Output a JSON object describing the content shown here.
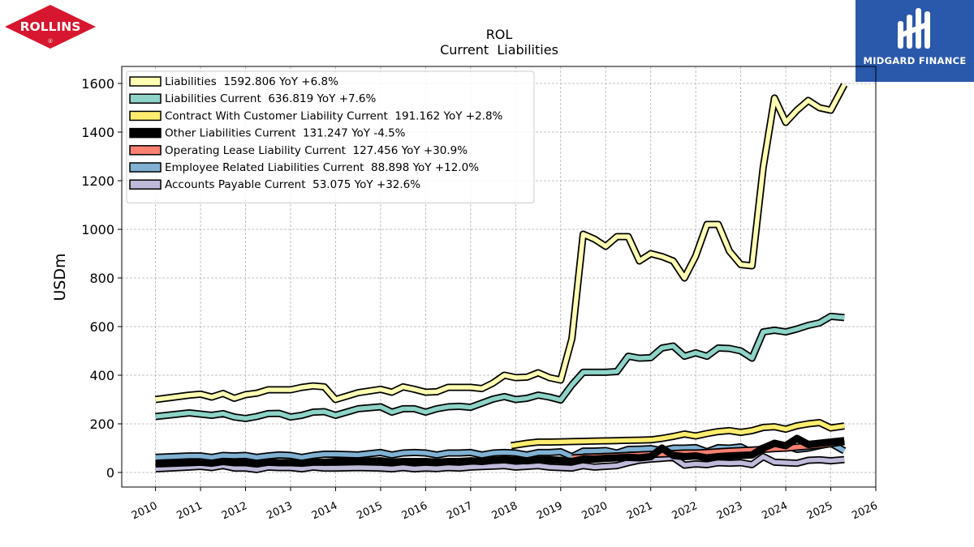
{
  "logos": {
    "left": {
      "text": "ROLLINS",
      "mark": "®",
      "color": "#d7172f"
    },
    "right": {
      "text": "MIDGARD FINANCE",
      "color": "#2a58ab"
    }
  },
  "chart_data": {
    "type": "line",
    "title": "ROL",
    "subtitle": "Current  Liabilities",
    "ylabel": "USDm",
    "xlim": [
      2009.25,
      2026.0
    ],
    "ylim": [
      -60,
      1670
    ],
    "xticks": [
      2010,
      2011,
      2012,
      2013,
      2014,
      2015,
      2016,
      2017,
      2018,
      2019,
      2020,
      2021,
      2022,
      2023,
      2024,
      2025,
      2026
    ],
    "xtick_labels": [
      "2010",
      "2011",
      "2012",
      "2013",
      "2014",
      "2015",
      "2016",
      "2017",
      "2018",
      "2019",
      "2020",
      "2021",
      "2022",
      "2023",
      "2024",
      "2025",
      "2026"
    ],
    "yticks": [
      0,
      200,
      400,
      600,
      800,
      1000,
      1200,
      1400,
      1600
    ],
    "ytick_labels": [
      "0",
      "200",
      "400",
      "600",
      "800",
      "1000",
      "1200",
      "1400",
      "1600"
    ],
    "grid": true,
    "legend_position": "top-left",
    "series": [
      {
        "name": "Accounts Payable Current",
        "legend": "Accounts Payable Current  53.075 YoY +32.6%",
        "color": "#bebada",
        "x": [
          2010.0,
          2010.75,
          2011.0,
          2011.25,
          2011.5,
          2011.75,
          2012.0,
          2012.25,
          2012.5,
          2012.75,
          2013.0,
          2013.25,
          2013.5,
          2013.75,
          2014.0,
          2014.5,
          2015.0,
          2015.25,
          2015.5,
          2015.75,
          2016.0,
          2016.25,
          2016.5,
          2016.75,
          2017.0,
          2017.25,
          2017.5,
          2017.75,
          2018.0,
          2018.25,
          2018.5,
          2018.75,
          2019.0,
          2019.25,
          2019.5,
          2019.75,
          2020.0,
          2020.25,
          2020.5,
          2020.75,
          2021.0,
          2021.25,
          2021.5,
          2021.75,
          2022.0,
          2022.25,
          2022.5,
          2022.75,
          2023.0,
          2023.25,
          2023.5,
          2023.75,
          2024.0,
          2024.25,
          2024.5,
          2024.75,
          2025.0,
          2025.3
        ],
        "y": [
          15,
          22,
          25,
          20,
          28,
          18,
          18,
          12,
          22,
          20,
          20,
          15,
          22,
          18,
          18,
          20,
          18,
          15,
          20,
          15,
          18,
          16,
          20,
          18,
          22,
          24,
          26,
          28,
          22,
          25,
          28,
          22,
          20,
          18,
          28,
          22,
          25,
          28,
          40,
          50,
          55,
          58,
          62,
          30,
          35,
          32,
          40,
          38,
          40,
          32,
          65,
          42,
          40,
          38,
          50,
          52,
          48,
          53
        ]
      },
      {
        "name": "Employee Related Liabilities Current",
        "legend": "Employee Related Liabilities Current  88.898 YoY +12.0%",
        "color": "#80b1d3",
        "x": [
          2010.0,
          2010.75,
          2011.0,
          2011.25,
          2011.5,
          2011.75,
          2012.0,
          2012.25,
          2012.5,
          2012.75,
          2013.0,
          2013.25,
          2013.5,
          2013.75,
          2014.0,
          2014.5,
          2015.0,
          2015.25,
          2015.5,
          2015.75,
          2016.0,
          2016.25,
          2016.5,
          2016.75,
          2017.0,
          2017.25,
          2017.5,
          2017.75,
          2018.0,
          2018.25,
          2018.5,
          2018.75,
          2019.0,
          2019.25,
          2019.5,
          2019.75,
          2020.0,
          2020.25,
          2020.5,
          2020.75,
          2021.0,
          2021.25,
          2021.5,
          2021.75,
          2022.0,
          2022.25,
          2022.5,
          2022.75,
          2023.0,
          2023.25,
          2023.5,
          2023.75,
          2024.0,
          2024.25,
          2024.5,
          2024.75,
          2025.0,
          2025.3
        ],
        "y": [
          62,
          68,
          68,
          62,
          70,
          68,
          70,
          62,
          68,
          72,
          70,
          62,
          70,
          75,
          75,
          72,
          82,
          72,
          80,
          82,
          80,
          72,
          80,
          80,
          82,
          72,
          80,
          82,
          80,
          72,
          82,
          82,
          85,
          65,
          88,
          88,
          90,
          80,
          95,
          96,
          98,
          90,
          100,
          100,
          102,
          85,
          102,
          100,
          105,
          82,
          100,
          100,
          110,
          95,
          100,
          110,
          120,
          89
        ]
      },
      {
        "name": "Operating Lease Liability Current",
        "legend": "Operating Lease Liability Current  127.456 YoY +30.9%",
        "color": "#fb8072",
        "x": [
          2019.25,
          2019.5,
          2019.75,
          2020.0,
          2020.25,
          2020.5,
          2020.75,
          2021.0,
          2021.25,
          2021.5,
          2021.75,
          2022.0,
          2022.25,
          2022.5,
          2022.75,
          2023.0,
          2023.25,
          2023.5,
          2023.75,
          2024.0,
          2024.25,
          2024.5,
          2024.75,
          2025.0,
          2025.3
        ],
        "y": [
          60,
          62,
          64,
          66,
          68,
          70,
          72,
          74,
          76,
          78,
          80,
          80,
          82,
          85,
          88,
          90,
          92,
          95,
          98,
          100,
          104,
          108,
          112,
          118,
          127
        ]
      },
      {
        "name": "Other Liabilities Current",
        "legend": "Other Liabilities Current  131.247 YoY -4.5%",
        "color": "#000000",
        "x": [
          2010.0,
          2010.75,
          2011.0,
          2011.25,
          2011.5,
          2011.75,
          2012.0,
          2012.25,
          2012.5,
          2012.75,
          2013.0,
          2013.25,
          2013.5,
          2013.75,
          2014.0,
          2014.5,
          2015.0,
          2015.25,
          2015.5,
          2015.75,
          2016.0,
          2016.25,
          2016.5,
          2016.75,
          2017.0,
          2017.25,
          2017.5,
          2017.75,
          2018.0,
          2018.25,
          2018.5,
          2018.75,
          2019.0,
          2019.25,
          2019.5,
          2019.75,
          2020.0,
          2020.25,
          2020.5,
          2020.75,
          2021.0,
          2021.25,
          2021.5,
          2021.75,
          2022.0,
          2022.25,
          2022.5,
          2022.75,
          2023.0,
          2023.25,
          2023.5,
          2023.75,
          2024.0,
          2024.25,
          2024.5,
          2024.75,
          2025.0,
          2025.3
        ],
        "y": [
          35,
          40,
          42,
          38,
          45,
          40,
          40,
          35,
          42,
          40,
          40,
          38,
          42,
          42,
          45,
          45,
          48,
          42,
          45,
          45,
          45,
          42,
          45,
          45,
          48,
          45,
          50,
          52,
          50,
          48,
          52,
          52,
          50,
          45,
          55,
          55,
          58,
          60,
          62,
          60,
          65,
          100,
          70,
          65,
          68,
          60,
          65,
          68,
          70,
          72,
          100,
          120,
          110,
          140,
          115,
          120,
          125,
          131
        ]
      },
      {
        "name": "Contract With Customer Liability Current",
        "legend": "Contract With Customer Liability Current  191.162 YoY +2.8%",
        "color": "#ffed6f",
        "x": [
          2017.9,
          2018.25,
          2018.5,
          2018.75,
          2019.0,
          2019.25,
          2019.5,
          2019.75,
          2020.0,
          2020.25,
          2020.5,
          2020.75,
          2021.0,
          2021.25,
          2021.5,
          2021.75,
          2022.0,
          2022.25,
          2022.5,
          2022.75,
          2023.0,
          2023.25,
          2023.5,
          2023.75,
          2024.0,
          2024.25,
          2024.5,
          2024.75,
          2025.0,
          2025.3
        ],
        "y": [
          110,
          120,
          125,
          125,
          126,
          127,
          128,
          129,
          130,
          131,
          132,
          133,
          134,
          140,
          148,
          158,
          150,
          160,
          168,
          172,
          165,
          172,
          185,
          188,
          178,
          192,
          200,
          205,
          183,
          191
        ]
      },
      {
        "name": "Liabilities Current",
        "legend": "Liabilities Current  636.819 YoY +7.6%",
        "color": "#8dd3c7",
        "x": [
          2010.0,
          2010.75,
          2011.0,
          2011.25,
          2011.5,
          2011.75,
          2012.0,
          2012.25,
          2012.5,
          2012.75,
          2013.0,
          2013.25,
          2013.5,
          2013.75,
          2014.0,
          2014.5,
          2015.0,
          2015.25,
          2015.5,
          2015.75,
          2016.0,
          2016.25,
          2016.5,
          2016.75,
          2017.0,
          2017.25,
          2017.5,
          2017.75,
          2018.0,
          2018.25,
          2018.5,
          2018.75,
          2019.0,
          2019.25,
          2019.5,
          2019.75,
          2020.0,
          2020.25,
          2020.5,
          2020.75,
          2021.0,
          2021.25,
          2021.5,
          2021.75,
          2022.0,
          2022.25,
          2022.5,
          2022.75,
          2023.0,
          2023.25,
          2023.5,
          2023.75,
          2024.0,
          2024.25,
          2024.5,
          2024.75,
          2025.0,
          2025.3
        ],
        "y": [
          230,
          245,
          240,
          235,
          242,
          228,
          222,
          230,
          242,
          243,
          228,
          235,
          248,
          250,
          235,
          262,
          270,
          248,
          262,
          262,
          248,
          262,
          270,
          272,
          268,
          285,
          302,
          312,
          300,
          305,
          318,
          310,
          298,
          360,
          412,
          412,
          412,
          415,
          478,
          470,
          472,
          512,
          520,
          478,
          492,
          478,
          512,
          510,
          500,
          470,
          578,
          585,
          578,
          590,
          605,
          615,
          642,
          637
        ]
      },
      {
        "name": "Liabilities",
        "legend": "Liabilities  1592.806 YoY +6.8%",
        "color": "#ffffb3",
        "x": [
          2010.0,
          2010.75,
          2011.0,
          2011.25,
          2011.5,
          2011.75,
          2012.0,
          2012.25,
          2012.5,
          2012.75,
          2013.0,
          2013.25,
          2013.5,
          2013.75,
          2014.0,
          2014.5,
          2015.0,
          2015.25,
          2015.5,
          2015.75,
          2016.0,
          2016.25,
          2016.5,
          2016.75,
          2017.0,
          2017.25,
          2017.5,
          2017.75,
          2018.0,
          2018.25,
          2018.5,
          2018.75,
          2019.0,
          2019.25,
          2019.5,
          2019.75,
          2020.0,
          2020.25,
          2020.5,
          2020.75,
          2021.0,
          2021.25,
          2021.5,
          2021.75,
          2022.0,
          2022.25,
          2022.5,
          2022.75,
          2023.0,
          2023.25,
          2023.5,
          2023.75,
          2024.0,
          2024.25,
          2024.5,
          2024.75,
          2025.0,
          2025.3
        ],
        "y": [
          300,
          318,
          322,
          310,
          325,
          305,
          320,
          326,
          340,
          340,
          340,
          350,
          356,
          352,
          300,
          328,
          342,
          330,
          352,
          342,
          330,
          332,
          350,
          350,
          350,
          345,
          368,
          400,
          390,
          392,
          410,
          390,
          380,
          550,
          980,
          960,
          930,
          970,
          970,
          870,
          900,
          888,
          870,
          800,
          890,
          1020,
          1020,
          910,
          855,
          850,
          1255,
          1540,
          1440,
          1490,
          1530,
          1500,
          1490,
          1595
        ]
      }
    ]
  }
}
